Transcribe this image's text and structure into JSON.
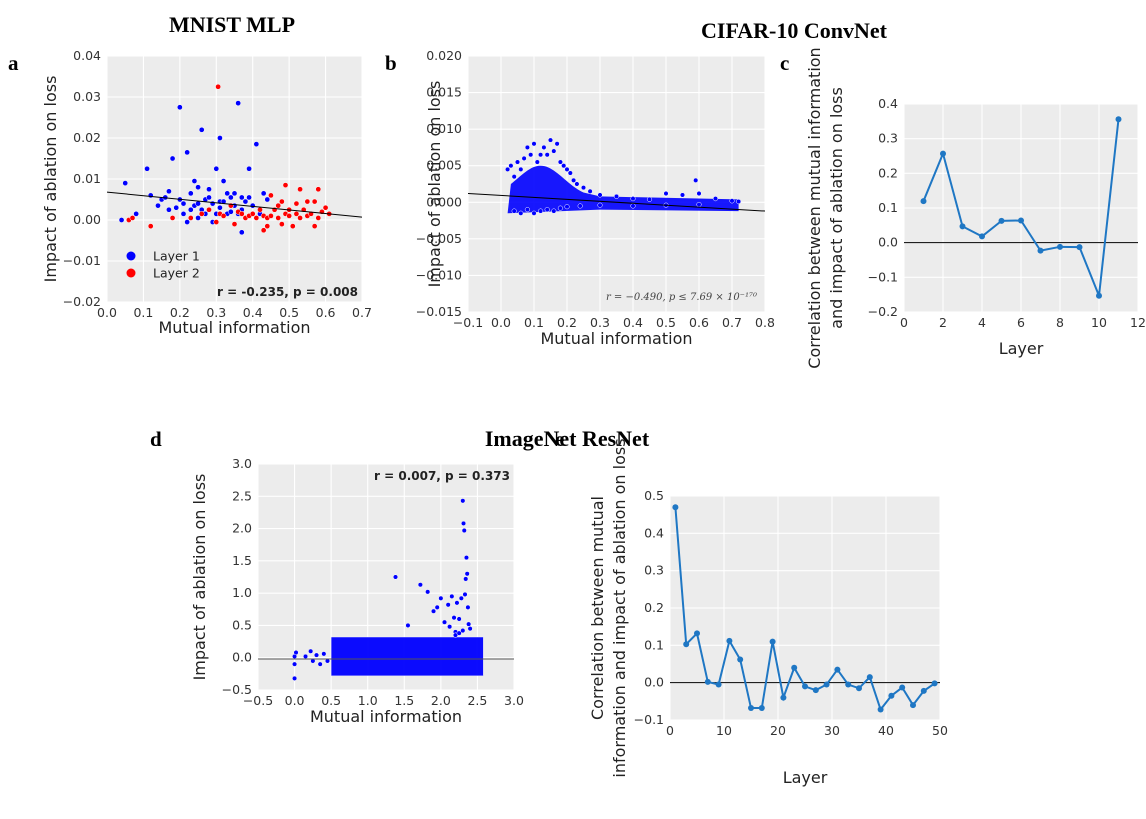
{
  "headings": {
    "mnist": "MNIST MLP",
    "cifar": "CIFAR-10 ConvNet",
    "imagenet": "ImageNet ResNet"
  },
  "colors": {
    "layer1": "#0000ff",
    "layer2": "#ff0000",
    "line_series": "#1f77c4",
    "fit_line": "#000000",
    "plot_bg": "#ececec"
  },
  "chart_data": [
    {
      "id": "a",
      "type": "scatter",
      "letter": "a",
      "xlabel": "Mutual information",
      "ylabel": "Impact of ablation on loss",
      "xlim": [
        0.0,
        0.7
      ],
      "ylim": [
        -0.02,
        0.04
      ],
      "xticks": [
        "0.0",
        "0.1",
        "0.2",
        "0.3",
        "0.4",
        "0.5",
        "0.6",
        "0.7"
      ],
      "yticks": [
        "−0.02",
        "−0.01",
        "0.00",
        "0.01",
        "0.02",
        "0.03",
        "0.04"
      ],
      "legend": [
        "Layer 1",
        "Layer 2"
      ],
      "legend_position": "lower-left",
      "annotation": "r = -0.235, p = 0.008",
      "fit": [
        [
          0.0,
          0.0068
        ],
        [
          0.7,
          0.0007
        ]
      ],
      "series": [
        {
          "name": "Layer 1",
          "color": "#0000ff",
          "points": [
            [
              0.04,
              0.0
            ],
            [
              0.05,
              0.009
            ],
            [
              0.08,
              0.0015
            ],
            [
              0.11,
              0.0125
            ],
            [
              0.12,
              0.006
            ],
            [
              0.14,
              0.0035
            ],
            [
              0.15,
              0.005
            ],
            [
              0.16,
              0.0055
            ],
            [
              0.17,
              0.007
            ],
            [
              0.17,
              0.0025
            ],
            [
              0.18,
              0.015
            ],
            [
              0.19,
              0.003
            ],
            [
              0.2,
              0.0275
            ],
            [
              0.2,
              0.005
            ],
            [
              0.21,
              0.004
            ],
            [
              0.21,
              0.0015
            ],
            [
              0.22,
              0.0165
            ],
            [
              0.22,
              -0.0005
            ],
            [
              0.23,
              0.0025
            ],
            [
              0.23,
              0.0065
            ],
            [
              0.24,
              0.0035
            ],
            [
              0.24,
              0.0095
            ],
            [
              0.25,
              0.008
            ],
            [
              0.25,
              0.004
            ],
            [
              0.25,
              0.0005
            ],
            [
              0.26,
              0.0025
            ],
            [
              0.26,
              0.022
            ],
            [
              0.27,
              0.005
            ],
            [
              0.27,
              0.0015
            ],
            [
              0.28,
              0.0055
            ],
            [
              0.28,
              0.0075
            ],
            [
              0.28,
              0.0025
            ],
            [
              0.29,
              0.004
            ],
            [
              0.29,
              -0.0005
            ],
            [
              0.3,
              0.0125
            ],
            [
              0.3,
              0.0015
            ],
            [
              0.31,
              0.0045
            ],
            [
              0.31,
              0.02
            ],
            [
              0.31,
              0.003
            ],
            [
              0.32,
              0.0095
            ],
            [
              0.32,
              0.0045
            ],
            [
              0.33,
              0.0015
            ],
            [
              0.33,
              0.0065
            ],
            [
              0.34,
              0.0055
            ],
            [
              0.34,
              0.002
            ],
            [
              0.35,
              0.0065
            ],
            [
              0.35,
              0.0035
            ],
            [
              0.36,
              0.0285
            ],
            [
              0.36,
              0.0015
            ],
            [
              0.37,
              0.0055
            ],
            [
              0.37,
              -0.003
            ],
            [
              0.37,
              0.0025
            ],
            [
              0.38,
              0.0045
            ],
            [
              0.38,
              0.0005
            ],
            [
              0.39,
              0.0055
            ],
            [
              0.39,
              0.0125
            ],
            [
              0.4,
              0.0035
            ],
            [
              0.4,
              0.0015
            ],
            [
              0.41,
              0.0185
            ],
            [
              0.42,
              0.0015
            ],
            [
              0.43,
              0.0065
            ],
            [
              0.44,
              0.005
            ]
          ]
        },
        {
          "name": "Layer 2",
          "color": "#ff0000",
          "points": [
            [
              0.06,
              0.0
            ],
            [
              0.07,
              0.0005
            ],
            [
              0.12,
              -0.0015
            ],
            [
              0.18,
              0.0005
            ],
            [
              0.23,
              0.0005
            ],
            [
              0.26,
              0.0015
            ],
            [
              0.28,
              0.0025
            ],
            [
              0.3,
              -0.0005
            ],
            [
              0.305,
              0.0325
            ],
            [
              0.31,
              0.0015
            ],
            [
              0.32,
              0.001
            ],
            [
              0.34,
              0.0035
            ],
            [
              0.35,
              -0.001
            ],
            [
              0.36,
              0.002
            ],
            [
              0.37,
              0.0015
            ],
            [
              0.38,
              0.0005
            ],
            [
              0.39,
              0.001
            ],
            [
              0.4,
              0.0015
            ],
            [
              0.41,
              0.0005
            ],
            [
              0.42,
              0.0025
            ],
            [
              0.43,
              -0.0025
            ],
            [
              0.43,
              0.001
            ],
            [
              0.44,
              0.0005
            ],
            [
              0.44,
              -0.0015
            ],
            [
              0.45,
              0.006
            ],
            [
              0.45,
              0.001
            ],
            [
              0.46,
              0.0025
            ],
            [
              0.47,
              0.0035
            ],
            [
              0.47,
              0.0005
            ],
            [
              0.48,
              0.0045
            ],
            [
              0.48,
              -0.001
            ],
            [
              0.49,
              0.0015
            ],
            [
              0.49,
              0.0085
            ],
            [
              0.5,
              0.0025
            ],
            [
              0.5,
              0.001
            ],
            [
              0.51,
              -0.0015
            ],
            [
              0.52,
              0.004
            ],
            [
              0.52,
              0.0015
            ],
            [
              0.53,
              0.0005
            ],
            [
              0.53,
              0.0075
            ],
            [
              0.54,
              0.0025
            ],
            [
              0.55,
              0.0045
            ],
            [
              0.55,
              0.001
            ],
            [
              0.56,
              0.0015
            ],
            [
              0.57,
              0.0045
            ],
            [
              0.57,
              -0.0015
            ],
            [
              0.58,
              0.0005
            ],
            [
              0.58,
              0.0075
            ],
            [
              0.59,
              0.002
            ],
            [
              0.6,
              0.003
            ],
            [
              0.61,
              0.0015
            ]
          ]
        }
      ]
    },
    {
      "id": "b",
      "type": "scatter",
      "letter": "b",
      "xlabel": "Mutual information",
      "ylabel": "Impact of ablation on loss",
      "xlim": [
        -0.1,
        0.8
      ],
      "ylim": [
        -0.015,
        0.02
      ],
      "xticks": [
        "−0.1",
        "0.0",
        "0.1",
        "0.2",
        "0.3",
        "0.4",
        "0.5",
        "0.6",
        "0.7",
        "0.8"
      ],
      "yticks": [
        "−0.015",
        "−0.010",
        "−0.005",
        "0.000",
        "0.005",
        "0.010",
        "0.015",
        "0.020"
      ],
      "annotation": "r = −0.490, p ≤ 7.69 × 10⁻¹⁷⁰",
      "fit": [
        [
          -0.1,
          0.0012
        ],
        [
          0.8,
          -0.0012
        ]
      ],
      "series": [
        {
          "name": "",
          "color": "#0000ff",
          "points": [
            [
              0.02,
              0.0045
            ],
            [
              0.03,
              0.005
            ],
            [
              0.04,
              0.0035
            ],
            [
              0.05,
              0.0055
            ],
            [
              0.06,
              0.0045
            ],
            [
              0.07,
              0.006
            ],
            [
              0.08,
              0.0075
            ],
            [
              0.09,
              0.0065
            ],
            [
              0.1,
              0.008
            ],
            [
              0.11,
              0.0055
            ],
            [
              0.12,
              0.0065
            ],
            [
              0.13,
              0.0075
            ],
            [
              0.14,
              0.0065
            ],
            [
              0.15,
              0.0085
            ],
            [
              0.16,
              0.007
            ],
            [
              0.17,
              0.008
            ],
            [
              0.18,
              0.0055
            ],
            [
              0.19,
              0.005
            ],
            [
              0.2,
              0.0045
            ],
            [
              0.21,
              0.004
            ],
            [
              0.22,
              0.003
            ],
            [
              0.23,
              0.0025
            ],
            [
              0.25,
              0.002
            ],
            [
              0.27,
              0.0015
            ],
            [
              0.3,
              0.001
            ],
            [
              0.35,
              0.0008
            ],
            [
              0.4,
              0.0005
            ],
            [
              0.45,
              0.0004
            ],
            [
              0.5,
              0.0012
            ],
            [
              0.55,
              0.001
            ],
            [
              0.59,
              0.003
            ],
            [
              0.6,
              0.0012
            ],
            [
              0.65,
              0.0005
            ],
            [
              0.7,
              0.0002
            ],
            [
              0.72,
              0.0001
            ],
            [
              0.04,
              -0.0012
            ],
            [
              0.06,
              -0.0015
            ],
            [
              0.08,
              -0.001
            ],
            [
              0.1,
              -0.0015
            ],
            [
              0.12,
              -0.0012
            ],
            [
              0.14,
              -0.001
            ],
            [
              0.16,
              -0.0012
            ],
            [
              0.18,
              -0.0008
            ],
            [
              0.2,
              -0.0006
            ],
            [
              0.24,
              -0.0005
            ],
            [
              0.3,
              -0.0004
            ],
            [
              0.4,
              -0.0005
            ],
            [
              0.5,
              -0.0004
            ],
            [
              0.6,
              -0.0003
            ]
          ]
        }
      ]
    },
    {
      "id": "c",
      "type": "line",
      "letter": "c",
      "xlabel": "Layer",
      "ylabel": [
        "Correlation between mutual information",
        "and impact of ablation on loss"
      ],
      "xlim": [
        0,
        12
      ],
      "ylim": [
        -0.2,
        0.4
      ],
      "xticks": [
        "0",
        "2",
        "4",
        "6",
        "8",
        "10",
        "12"
      ],
      "yticks": [
        "−0.2",
        "−0.1",
        "0.0",
        "0.1",
        "0.2",
        "0.3",
        "0.4"
      ],
      "x": [
        1,
        2,
        3,
        4,
        5,
        6,
        7,
        8,
        9,
        10,
        11
      ],
      "values": [
        0.12,
        0.257,
        0.047,
        0.018,
        0.063,
        0.064,
        -0.023,
        -0.012,
        -0.013,
        -0.153,
        0.356
      ]
    },
    {
      "id": "d",
      "type": "scatter",
      "letter": "d",
      "xlabel": "Mutual information",
      "ylabel": "Impact of ablation on loss",
      "xlim": [
        -0.5,
        3.0
      ],
      "ylim": [
        -0.5,
        3.0
      ],
      "xticks": [
        "−0.5",
        "0.0",
        "0.5",
        "1.0",
        "1.5",
        "2.0",
        "2.5",
        "3.0"
      ],
      "yticks": [
        "−0.5",
        "0.0",
        "0.5",
        "1.0",
        "1.5",
        "2.0",
        "2.5",
        "3.0"
      ],
      "annotation": "r = 0.007, p = 0.373",
      "fit": [
        [
          -0.5,
          -0.02
        ],
        [
          3.0,
          -0.02
        ]
      ],
      "dense_band": {
        "x": [
          0.5,
          2.58
        ],
        "y": [
          -0.28,
          0.32
        ]
      },
      "series": [
        {
          "name": "",
          "color": "#0000ff",
          "points": [
            [
              0.0,
              -0.32
            ],
            [
              0.0,
              -0.1
            ],
            [
              0.0,
              0.02
            ],
            [
              0.02,
              0.08
            ],
            [
              0.15,
              0.02
            ],
            [
              0.22,
              0.1
            ],
            [
              0.25,
              -0.05
            ],
            [
              0.3,
              0.04
            ],
            [
              0.35,
              -0.1
            ],
            [
              0.4,
              0.06
            ],
            [
              0.45,
              -0.05
            ],
            [
              1.38,
              1.25
            ],
            [
              1.55,
              0.5
            ],
            [
              1.72,
              1.13
            ],
            [
              1.82,
              1.02
            ],
            [
              1.9,
              0.72
            ],
            [
              1.95,
              0.78
            ],
            [
              2.0,
              0.92
            ],
            [
              2.05,
              0.55
            ],
            [
              2.1,
              0.82
            ],
            [
              2.12,
              0.48
            ],
            [
              2.15,
              0.95
            ],
            [
              2.18,
              0.62
            ],
            [
              2.2,
              0.4
            ],
            [
              2.22,
              0.85
            ],
            [
              2.25,
              0.6
            ],
            [
              2.28,
              0.92
            ],
            [
              2.3,
              2.43
            ],
            [
              2.31,
              2.08
            ],
            [
              2.32,
              1.97
            ],
            [
              2.33,
              0.98
            ],
            [
              2.34,
              1.22
            ],
            [
              2.35,
              1.55
            ],
            [
              2.36,
              1.3
            ],
            [
              2.37,
              0.78
            ],
            [
              2.38,
              0.52
            ],
            [
              2.4,
              0.45
            ],
            [
              2.2,
              0.35
            ],
            [
              2.25,
              0.38
            ],
            [
              2.3,
              0.42
            ]
          ]
        }
      ]
    },
    {
      "id": "e",
      "type": "line",
      "letter": "e",
      "xlabel": "Layer",
      "ylabel": [
        "Correlation between mutual",
        "information and impact of ablation on loss"
      ],
      "xlim": [
        0,
        50
      ],
      "ylim": [
        -0.1,
        0.5
      ],
      "xticks": [
        "0",
        "10",
        "20",
        "30",
        "40",
        "50"
      ],
      "yticks": [
        "−0.1",
        "0.0",
        "0.1",
        "0.2",
        "0.3",
        "0.4",
        "0.5"
      ],
      "x": [
        1,
        3,
        5,
        7,
        9,
        11,
        13,
        15,
        17,
        19,
        21,
        23,
        25,
        27,
        29,
        31,
        33,
        35,
        37,
        39,
        41,
        43,
        45,
        47,
        49
      ],
      "values": [
        0.47,
        0.103,
        0.132,
        0.002,
        -0.005,
        0.112,
        0.062,
        -0.068,
        -0.068,
        0.11,
        -0.04,
        0.04,
        -0.01,
        -0.02,
        -0.005,
        0.035,
        -0.005,
        -0.015,
        0.015,
        -0.072,
        -0.035,
        -0.013,
        -0.06,
        -0.022,
        -0.002
      ]
    }
  ]
}
